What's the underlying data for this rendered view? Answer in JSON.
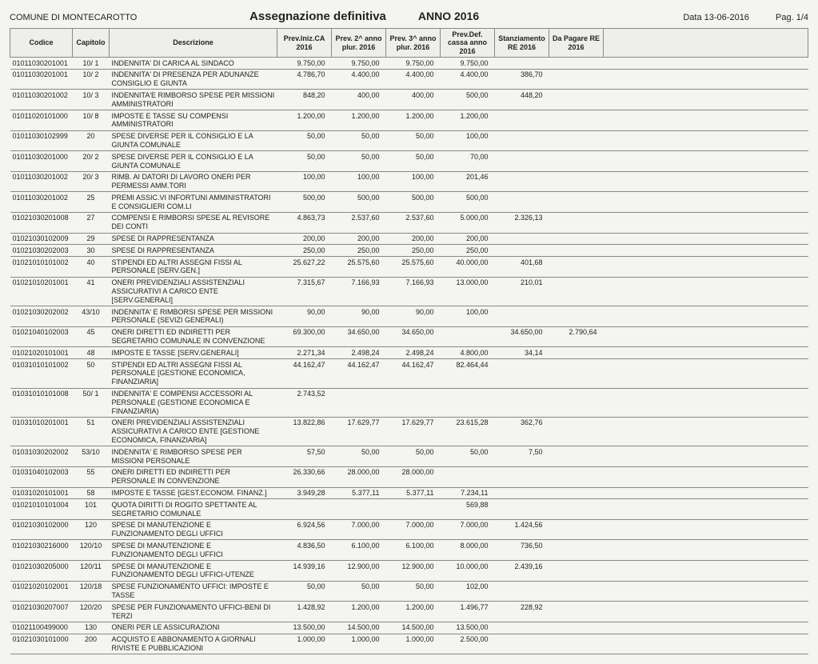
{
  "header": {
    "comune": "COMUNE DI MONTECAROTTO",
    "title": "Assegnazione definitiva",
    "anno_label": "ANNO 2016",
    "data_label": "Data",
    "data_value": "13-06-2016",
    "pag_label": "Pag.",
    "pag_value": "1/4"
  },
  "columns": [
    "Codice",
    "Capitolo",
    "Descrizione",
    "Prev.Iniz.CA 2016",
    "Prev. 2^ anno plur. 2016",
    "Prev. 3^ anno plur. 2016",
    "Prev.Def. cassa anno 2016",
    "Stanziamento RE 2016",
    "Da Pagare RE 2016"
  ],
  "rows": [
    {
      "codice": "01011030201001",
      "cap": "10/ 1",
      "desc": "INDENNITA' DI CARICA AL SINDACO",
      "v": [
        "9.750,00",
        "9.750,00",
        "9.750,00",
        "9.750,00",
        "",
        ""
      ]
    },
    {
      "codice": "01011030201001",
      "cap": "10/ 2",
      "desc": "INDENNITA' DI PRESENZA PER ADUNANZE CONSIGLIO E GIUNTA",
      "v": [
        "4.786,70",
        "4.400,00",
        "4.400,00",
        "4.400,00",
        "386,70",
        ""
      ]
    },
    {
      "codice": "01011030201002",
      "cap": "10/ 3",
      "desc": "INDENNITA'E RIMBORSO SPESE PER MISSIONI AMMINISTRATORI",
      "v": [
        "848,20",
        "400,00",
        "400,00",
        "500,00",
        "448,20",
        ""
      ]
    },
    {
      "codice": "01011020101000",
      "cap": "10/ 8",
      "desc": "IMPOSTE E TASSE SU COMPENSI AMMINISTRATORI",
      "v": [
        "1.200,00",
        "1.200,00",
        "1.200,00",
        "1.200,00",
        "",
        ""
      ]
    },
    {
      "codice": "01011030102999",
      "cap": "20",
      "desc": "SPESE DIVERSE PER IL CONSIGLIO E LA GIUNTA COMUNALE",
      "v": [
        "50,00",
        "50,00",
        "50,00",
        "100,00",
        "",
        ""
      ]
    },
    {
      "codice": "01011030201000",
      "cap": "20/ 2",
      "desc": "SPESE DIVERSE PER IL CONSIGLIO E LA GIUNTA COMUNALE",
      "v": [
        "50,00",
        "50,00",
        "50,00",
        "70,00",
        "",
        ""
      ]
    },
    {
      "codice": "01011030201002",
      "cap": "20/ 3",
      "desc": "RIMB. AI DATORI DI LAVORO ONERI PER PERMESSI AMM.TORI",
      "v": [
        "100,00",
        "100,00",
        "100,00",
        "201,46",
        "",
        ""
      ]
    },
    {
      "codice": "01011030201002",
      "cap": "25",
      "desc": "PREMI ASSIC.VI INFORTUNI AMMINISTRATORI E CONSIGLIERI COM.LI",
      "v": [
        "500,00",
        "500,00",
        "500,00",
        "500,00",
        "",
        ""
      ]
    },
    {
      "codice": "01021030201008",
      "cap": "27",
      "desc": "COMPENSI E RIMBORSI SPESE AL REVISORE DEI CONTI",
      "v": [
        "4.863,73",
        "2.537,60",
        "2.537,60",
        "5.000,00",
        "2.326,13",
        ""
      ]
    },
    {
      "codice": "01021030102009",
      "cap": "29",
      "desc": "SPESE DI RAPPRESENTANZA",
      "v": [
        "200,00",
        "200,00",
        "200,00",
        "200,00",
        "",
        ""
      ]
    },
    {
      "codice": "01021030202003",
      "cap": "30",
      "desc": "SPESE DI RAPPRESENTANZA",
      "v": [
        "250,00",
        "250,00",
        "250,00",
        "250,00",
        "",
        ""
      ]
    },
    {
      "codice": "01021010101002",
      "cap": "40",
      "desc": "STIPENDI ED ALTRI ASSEGNI FISSI AL PERSONALE [SERV.GEN.]",
      "v": [
        "25.627,22",
        "25.575,60",
        "25.575,60",
        "40.000,00",
        "401,68",
        ""
      ]
    },
    {
      "codice": "01021010201001",
      "cap": "41",
      "desc": "ONERI PREVIDENZIALI ASSISTENZIALI ASSICURATIVI A CARICO ENTE [SERV.GENERALI]",
      "v": [
        "7.315,67",
        "7.166,93",
        "7.166,93",
        "13.000,00",
        "210,01",
        ""
      ]
    },
    {
      "codice": "01021030202002",
      "cap": "43/10",
      "desc": "INDENNITA' E RIMBORSI SPESE PER MISSIONI PERSONALE (SEVIZI GENERALI)",
      "v": [
        "90,00",
        "90,00",
        "90,00",
        "100,00",
        "",
        ""
      ]
    },
    {
      "codice": "01021040102003",
      "cap": "45",
      "desc": "ONERI DIRETTI ED INDIRETTI PER SEGRETARIO COMUNALE IN CONVENZIONE",
      "v": [
        "69.300,00",
        "34.650,00",
        "34.650,00",
        "",
        "34.650,00",
        "2.790,64"
      ]
    },
    {
      "codice": "01021020101001",
      "cap": "48",
      "desc": "IMPOSTE E TASSE [SERV.GENERALI]",
      "v": [
        "2.271,34",
        "2.498,24",
        "2.498,24",
        "4.800,00",
        "34,14",
        ""
      ]
    },
    {
      "codice": "01031010101002",
      "cap": "50",
      "desc": "STIPENDI ED ALTRI ASSEGNI FISSI AL PERSONALE [GESTIONE ECONOMICA, FINANZIARIA]",
      "v": [
        "44.162,47",
        "44.162,47",
        "44.162,47",
        "82.464,44",
        "",
        ""
      ]
    },
    {
      "codice": "01031010101008",
      "cap": "50/ 1",
      "desc": "INDENNITA' E COMPENSI ACCESSORI AL PERSONALE (GESTIONE ECONOMICA E FINANZIARIA)",
      "v": [
        "2.743,52",
        "",
        "",
        "",
        "",
        ""
      ]
    },
    {
      "codice": "01031010201001",
      "cap": "51",
      "desc": "ONERI PREVIDENZIALI ASSISTENZIALI ASSICURATIVI A CARICO ENTE [GESTIONE ECONOMICA, FINANZIARIA]",
      "v": [
        "13.822,86",
        "17.629,77",
        "17.629,77",
        "23.615,28",
        "362,76",
        ""
      ]
    },
    {
      "codice": "01031030202002",
      "cap": "53/10",
      "desc": "INDENNITA' E RIMBORSO SPESE PER MISSIONI PERSONALE",
      "v": [
        "57,50",
        "50,00",
        "50,00",
        "50,00",
        "7,50",
        ""
      ]
    },
    {
      "codice": "01031040102003",
      "cap": "55",
      "desc": "ONERI DIRETTI ED INDIRETTI PER PERSONALE IN CONVENZIONE",
      "v": [
        "26.330,66",
        "28.000,00",
        "28.000,00",
        "",
        "",
        ""
      ]
    },
    {
      "codice": "01031020101001",
      "cap": "58",
      "desc": "IMPOSTE E TASSE [GEST.ECONOM. FINANZ.]",
      "v": [
        "3.949,28",
        "5.377,11",
        "5.377,11",
        "7.234,11",
        "",
        ""
      ]
    },
    {
      "codice": "01021010101004",
      "cap": "101",
      "desc": "QUOTA DIRITTI DI ROGITO SPETTANTE AL SEGRETARIO COMUNALE",
      "v": [
        "",
        "",
        "",
        "569,88",
        "",
        ""
      ]
    },
    {
      "codice": "01021030102000",
      "cap": "120",
      "desc": "SPESE DI MANUTENZIONE E FUNZIONAMENTO DEGLI UFFICI",
      "v": [
        "6.924,56",
        "7.000,00",
        "7.000,00",
        "7.000,00",
        "1.424,56",
        ""
      ]
    },
    {
      "codice": "01021030216000",
      "cap": "120/10",
      "desc": "SPESE DI MANUTENZIONE E FUNZIONAMENTO DEGLI UFFICI",
      "v": [
        "4.836,50",
        "6.100,00",
        "6.100,00",
        "8.000,00",
        "736,50",
        ""
      ]
    },
    {
      "codice": "01021030205000",
      "cap": "120/11",
      "desc": "SPESE DI MANUTENZIONE E FUNZIONAMENTO DEGLI UFFICI-UTENZE",
      "v": [
        "14.939,16",
        "12.900,00",
        "12.900,00",
        "10.000,00",
        "2.439,16",
        ""
      ]
    },
    {
      "codice": "01021020102001",
      "cap": "120/18",
      "desc": "SPESE FUNZIONAMENTO UFFICI: IMPOSTE E TASSE",
      "v": [
        "50,00",
        "50,00",
        "50,00",
        "102,00",
        "",
        ""
      ]
    },
    {
      "codice": "01021030207007",
      "cap": "120/20",
      "desc": "SPESE PER FUNZIONAMENTO UFFICI-BENI DI TERZI",
      "v": [
        "1.428,92",
        "1.200,00",
        "1.200,00",
        "1.496,77",
        "228,92",
        ""
      ]
    },
    {
      "codice": "01021100499000",
      "cap": "130",
      "desc": "ONERI PER LE ASSICURAZIONI",
      "v": [
        "13.500,00",
        "14.500,00",
        "14.500,00",
        "13.500,00",
        "",
        ""
      ]
    },
    {
      "codice": "01021030101000",
      "cap": "200",
      "desc": "ACQUISTO E ABBONAMENTO A GIORNALI RIVISTE E PUBBLICAZIONI",
      "v": [
        "1.000,00",
        "1.000,00",
        "1.000,00",
        "2.500,00",
        "",
        ""
      ]
    }
  ]
}
